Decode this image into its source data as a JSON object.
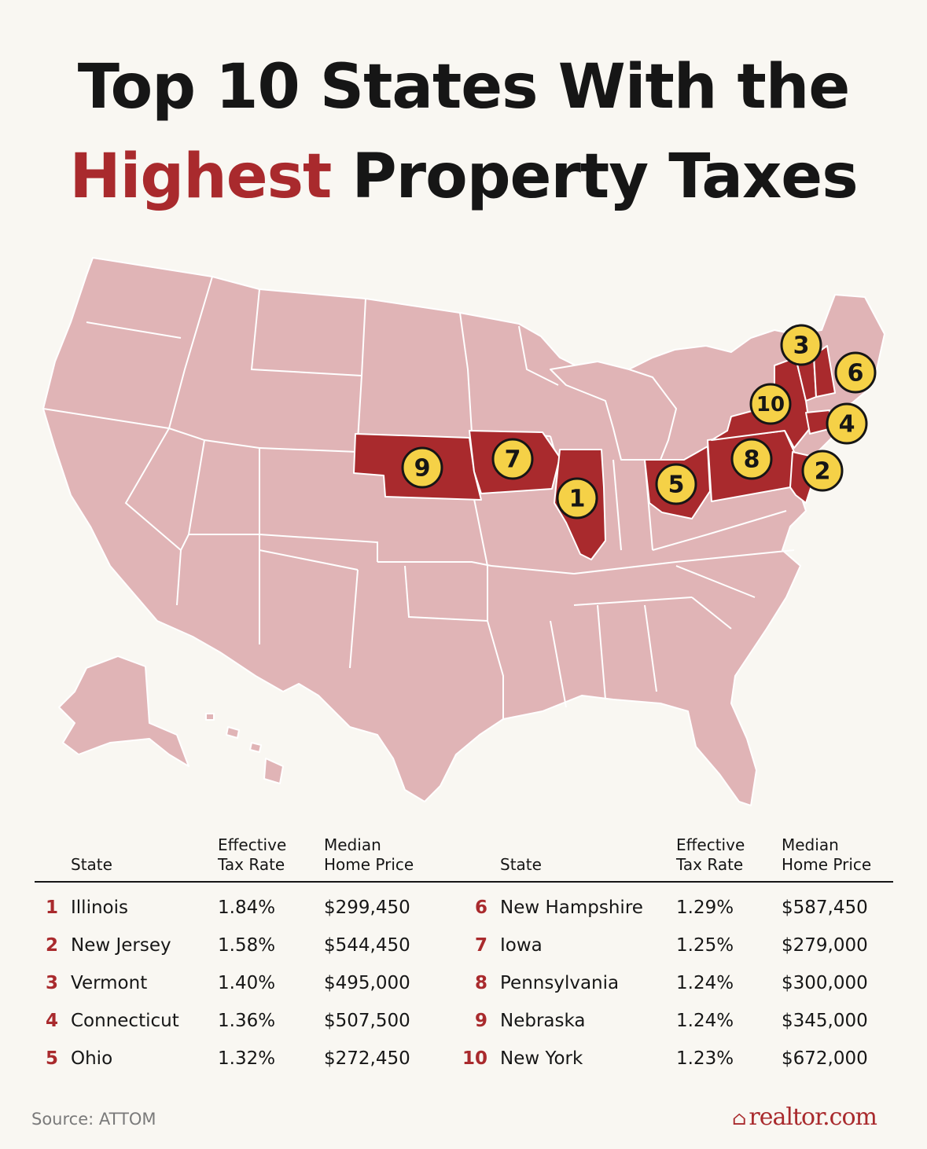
{
  "title": {
    "line1": "Top 10 States With the",
    "highlight": "Highest",
    "line2_rest": "Property Taxes"
  },
  "colors": {
    "accent": "#a92a2d",
    "base_state": "#e0b4b6",
    "badge": "#f5d147",
    "background": "#f9f7f2"
  },
  "map": {
    "badges": [
      {
        "rank": "1",
        "state": "Illinois"
      },
      {
        "rank": "2",
        "state": "New Jersey"
      },
      {
        "rank": "3",
        "state": "Vermont"
      },
      {
        "rank": "4",
        "state": "Connecticut"
      },
      {
        "rank": "5",
        "state": "Ohio"
      },
      {
        "rank": "6",
        "state": "New Hampshire"
      },
      {
        "rank": "7",
        "state": "Iowa"
      },
      {
        "rank": "8",
        "state": "Pennsylvania"
      },
      {
        "rank": "9",
        "state": "Nebraska"
      },
      {
        "rank": "10",
        "state": "New York"
      }
    ]
  },
  "table": {
    "headers": {
      "state": "State",
      "rate_line1": "Effective",
      "rate_line2": "Tax Rate",
      "price_line1": "Median",
      "price_line2": "Home Price"
    },
    "rows": [
      {
        "rank": "1",
        "state": "Illinois",
        "rate": "1.84%",
        "price": "$299,450"
      },
      {
        "rank": "2",
        "state": "New Jersey",
        "rate": "1.58%",
        "price": "$544,450"
      },
      {
        "rank": "3",
        "state": "Vermont",
        "rate": "1.40%",
        "price": "$495,000"
      },
      {
        "rank": "4",
        "state": "Connecticut",
        "rate": "1.36%",
        "price": "$507,500"
      },
      {
        "rank": "5",
        "state": "Ohio",
        "rate": "1.32%",
        "price": "$272,450"
      },
      {
        "rank": "6",
        "state": "New Hampshire",
        "rate": "1.29%",
        "price": "$587,450"
      },
      {
        "rank": "7",
        "state": "Iowa",
        "rate": "1.25%",
        "price": "$279,000"
      },
      {
        "rank": "8",
        "state": "Pennsylvania",
        "rate": "1.24%",
        "price": "$300,000"
      },
      {
        "rank": "9",
        "state": "Nebraska",
        "rate": "1.24%",
        "price": "$345,000"
      },
      {
        "rank": "10",
        "state": "New York",
        "rate": "1.23%",
        "price": "$672,000"
      }
    ]
  },
  "footer": {
    "source": "Source: ATTOM",
    "logo": "realtor.com"
  }
}
